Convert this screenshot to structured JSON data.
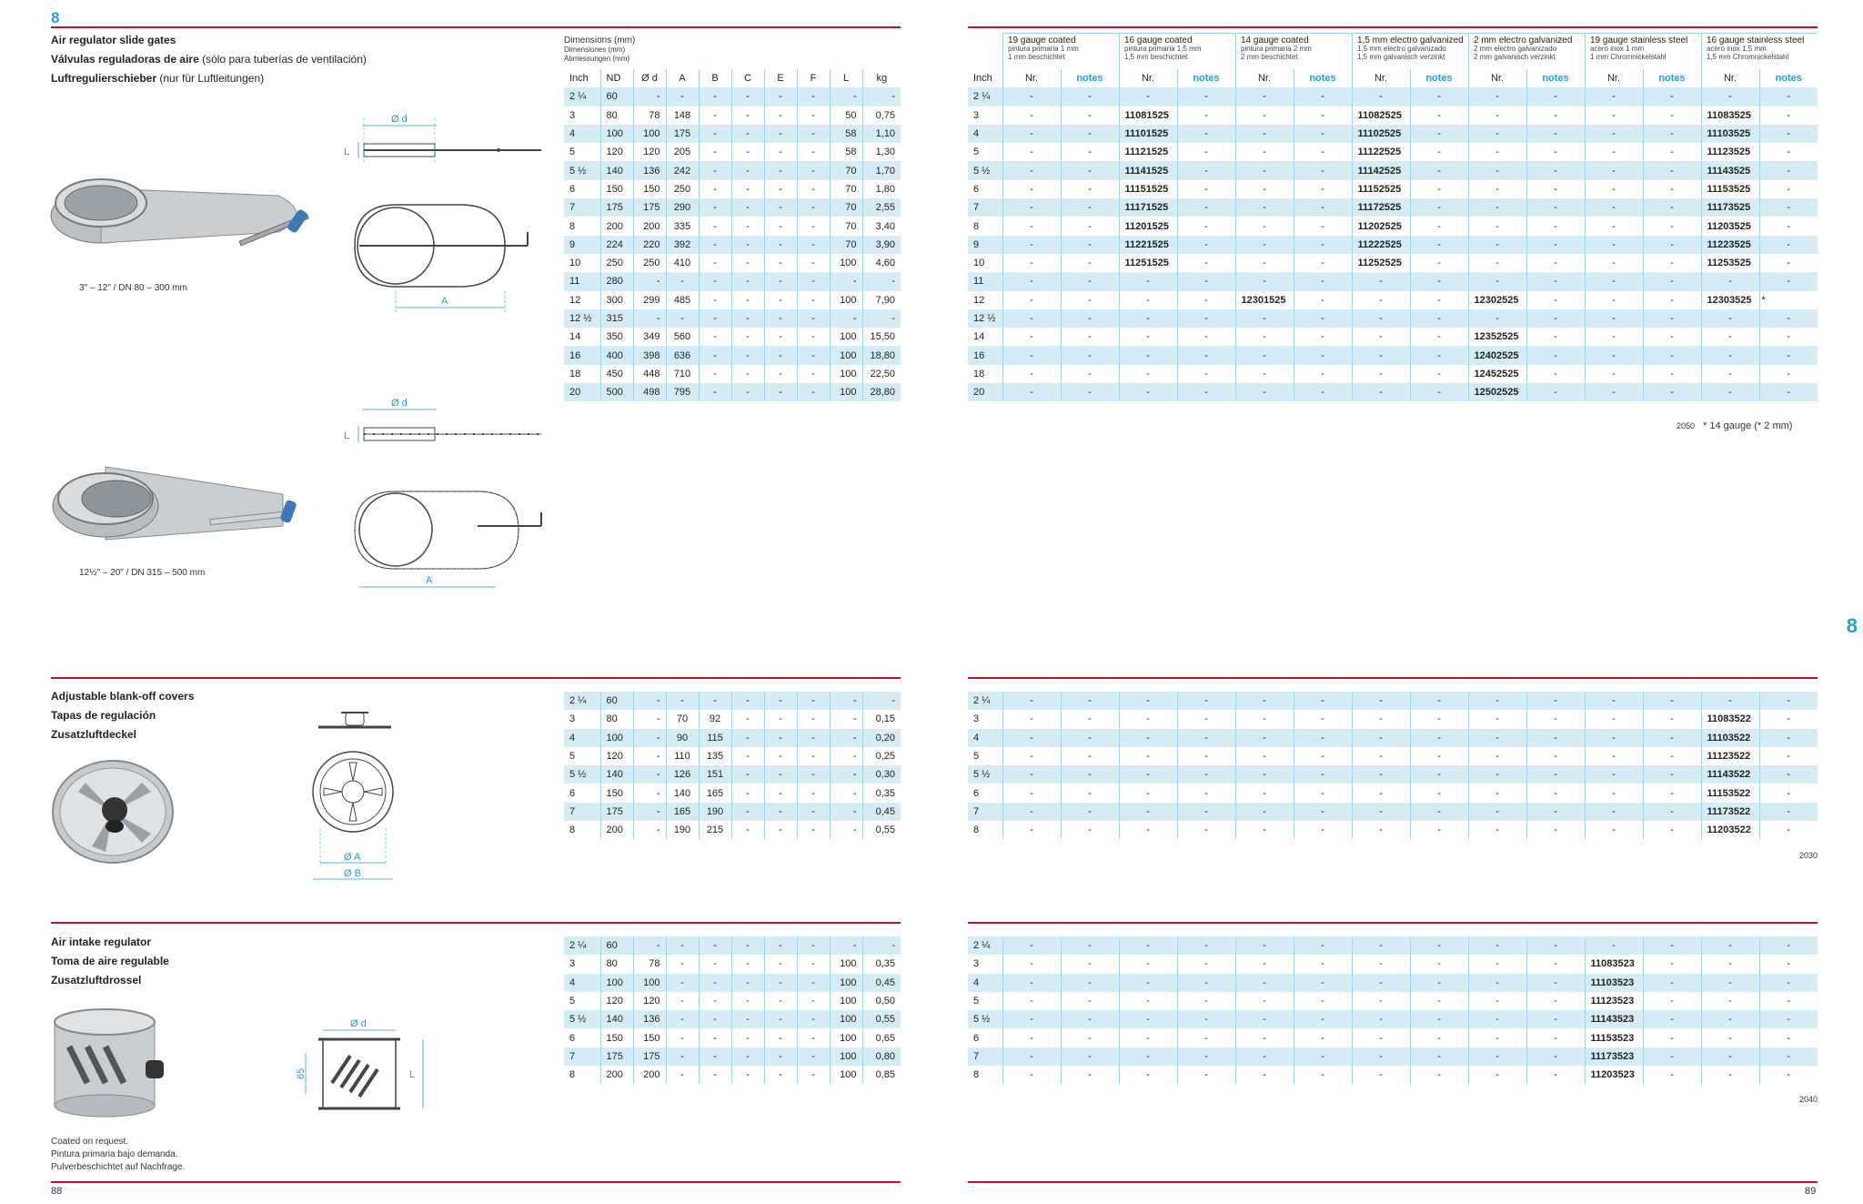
{
  "page": {
    "chapter": "8",
    "left_page": "88",
    "right_page": "89",
    "side_tab": "8",
    "colors": {
      "accent": "#1ea1d6",
      "rule": "#c8102e",
      "band": "#d5ecf7"
    }
  },
  "s1": {
    "title_en": "Air regulator slide gates",
    "title_es": "Válvulas reguladoras de aire",
    "title_es_note": "(sólo para tuberías de ventilación)",
    "title_de": "Luftregulierschieber",
    "title_de_note": "(nur für Luftleitungen)",
    "caption_small": "3\" – 12\" / DN 80 – 300 mm",
    "caption_large": "12½\" – 20\" / DN 315 – 500 mm",
    "dim_head": [
      "Dimensions (mm)",
      "Dimensiones (mm)",
      "Abmessungen (mm)"
    ],
    "dim_cols": [
      "Inch",
      "ND",
      "Ø d",
      "A",
      "B",
      "C",
      "E",
      "F",
      "L",
      "kg"
    ],
    "drawing_labels": {
      "d": "Ø d",
      "L": "L",
      "A": "A"
    },
    "dim_rows": [
      [
        "2 ¼",
        "60",
        "-",
        "-",
        "-",
        "-",
        "-",
        "-",
        "-",
        "-"
      ],
      [
        "3",
        "80",
        "78",
        "148",
        "-",
        "-",
        "-",
        "-",
        "50",
        "0,75"
      ],
      [
        "4",
        "100",
        "100",
        "175",
        "-",
        "-",
        "-",
        "-",
        "58",
        "1,10"
      ],
      [
        "5",
        "120",
        "120",
        "205",
        "-",
        "-",
        "-",
        "-",
        "58",
        "1,30"
      ],
      [
        "5 ½",
        "140",
        "136",
        "242",
        "-",
        "-",
        "-",
        "-",
        "70",
        "1,70"
      ],
      [
        "6",
        "150",
        "150",
        "250",
        "-",
        "-",
        "-",
        "-",
        "70",
        "1,80"
      ],
      [
        "7",
        "175",
        "175",
        "290",
        "-",
        "-",
        "-",
        "-",
        "70",
        "2,55"
      ],
      [
        "8",
        "200",
        "200",
        "335",
        "-",
        "-",
        "-",
        "-",
        "70",
        "3,40"
      ],
      [
        "9",
        "224",
        "220",
        "392",
        "-",
        "-",
        "-",
        "-",
        "70",
        "3,90"
      ],
      [
        "10",
        "250",
        "250",
        "410",
        "-",
        "-",
        "-",
        "-",
        "100",
        "4,60"
      ],
      [
        "11",
        "280",
        "-",
        "-",
        "-",
        "-",
        "-",
        "-",
        "-",
        "-"
      ],
      [
        "12",
        "300",
        "299",
        "485",
        "-",
        "-",
        "-",
        "-",
        "100",
        "7,90"
      ],
      [
        "12 ½",
        "315",
        "-",
        "-",
        "-",
        "-",
        "-",
        "-",
        "-",
        "-"
      ],
      [
        "14",
        "350",
        "349",
        "560",
        "-",
        "-",
        "-",
        "-",
        "100",
        "15,50"
      ],
      [
        "16",
        "400",
        "398",
        "636",
        "-",
        "-",
        "-",
        "-",
        "100",
        "18,80"
      ],
      [
        "18",
        "450",
        "448",
        "710",
        "-",
        "-",
        "-",
        "-",
        "100",
        "22,50"
      ],
      [
        "20",
        "500",
        "498",
        "795",
        "-",
        "-",
        "-",
        "-",
        "100",
        "28,80"
      ]
    ],
    "groups": [
      {
        "t": "19 gauge coated",
        "s1": "pintura primaria 1 mm",
        "s2": "1 mm beschichtet"
      },
      {
        "t": "16 gauge coated",
        "s1": "pintura primaria 1,5 mm",
        "s2": "1,5 mm beschichtet"
      },
      {
        "t": "14 gauge coated",
        "s1": "pintura primaria 2 mm",
        "s2": "2 mm beschichtet"
      },
      {
        "t": "1,5 mm electro galvanized",
        "s1": "1,5 mm electro galvanizado",
        "s2": "1,5 mm galvanisch verzinkt"
      },
      {
        "t": "2 mm electro galvanized",
        "s1": "2 mm electro galvanizado",
        "s2": "2 mm galvanisch verzinkt"
      },
      {
        "t": "19 gauge stainless steel",
        "s1": "acero inox 1 mm",
        "s2": "1 mm Chromnickelstahl"
      },
      {
        "t": "16 gauge stainless steel",
        "s1": "acero inox 1,5 mm",
        "s2": "1,5 mm Chromnickelstahl"
      }
    ],
    "col_inch": "Inch",
    "col_nr": "Nr.",
    "col_notes": "notes",
    "art_rows": [
      [
        "2 ¼",
        "-",
        "-",
        "-",
        "-",
        "-",
        "-",
        "-",
        "-",
        "-",
        "-",
        "-",
        "-",
        "-",
        "-"
      ],
      [
        "3",
        "-",
        "-",
        "11081525",
        "-",
        "-",
        "-",
        "11082525",
        "-",
        "-",
        "-",
        "-",
        "-",
        "11083525",
        "-"
      ],
      [
        "4",
        "-",
        "-",
        "11101525",
        "-",
        "-",
        "-",
        "11102525",
        "-",
        "-",
        "-",
        "-",
        "-",
        "11103525",
        "-"
      ],
      [
        "5",
        "-",
        "-",
        "11121525",
        "-",
        "-",
        "-",
        "11122525",
        "-",
        "-",
        "-",
        "-",
        "-",
        "11123525",
        "-"
      ],
      [
        "5 ½",
        "-",
        "-",
        "11141525",
        "-",
        "-",
        "-",
        "11142525",
        "-",
        "-",
        "-",
        "-",
        "-",
        "11143525",
        "-"
      ],
      [
        "6",
        "-",
        "-",
        "11151525",
        "-",
        "-",
        "-",
        "11152525",
        "-",
        "-",
        "-",
        "-",
        "-",
        "11153525",
        "-"
      ],
      [
        "7",
        "-",
        "-",
        "11171525",
        "-",
        "-",
        "-",
        "11172525",
        "-",
        "-",
        "-",
        "-",
        "-",
        "11173525",
        "-"
      ],
      [
        "8",
        "-",
        "-",
        "11201525",
        "-",
        "-",
        "-",
        "11202525",
        "-",
        "-",
        "-",
        "-",
        "-",
        "11203525",
        "-"
      ],
      [
        "9",
        "-",
        "-",
        "11221525",
        "-",
        "-",
        "-",
        "11222525",
        "-",
        "-",
        "-",
        "-",
        "-",
        "11223525",
        "-"
      ],
      [
        "10",
        "-",
        "-",
        "11251525",
        "-",
        "-",
        "-",
        "11252525",
        "-",
        "-",
        "-",
        "-",
        "-",
        "11253525",
        "-"
      ],
      [
        "11",
        "-",
        "-",
        "-",
        "-",
        "-",
        "-",
        "-",
        "-",
        "-",
        "-",
        "-",
        "-",
        "-",
        "-"
      ],
      [
        "12",
        "-",
        "-",
        "-",
        "-",
        "12301525",
        "-",
        "-",
        "-",
        "12302525",
        "-",
        "-",
        "-",
        "12303525",
        "*"
      ],
      [
        "12 ½",
        "-",
        "-",
        "-",
        "-",
        "-",
        "-",
        "-",
        "-",
        "-",
        "-",
        "-",
        "-",
        "-",
        "-"
      ],
      [
        "14",
        "-",
        "-",
        "-",
        "-",
        "-",
        "-",
        "-",
        "-",
        "12352525",
        "-",
        "-",
        "-",
        "-",
        "-"
      ],
      [
        "16",
        "-",
        "-",
        "-",
        "-",
        "-",
        "-",
        "-",
        "-",
        "12402525",
        "-",
        "-",
        "-",
        "-",
        "-"
      ],
      [
        "18",
        "-",
        "-",
        "-",
        "-",
        "-",
        "-",
        "-",
        "-",
        "12452525",
        "-",
        "-",
        "-",
        "-",
        "-"
      ],
      [
        "20",
        "-",
        "-",
        "-",
        "-",
        "-",
        "-",
        "-",
        "-",
        "12502525",
        "-",
        "-",
        "-",
        "-",
        "-"
      ]
    ],
    "code": "2050",
    "footnote": "* 14 gauge (* 2 mm)"
  },
  "s2": {
    "title_en": "Adjustable blank-off covers",
    "title_es": "Tapas de regulación",
    "title_de": "Zusatzluftdeckel",
    "drawing_labels": {
      "A": "Ø A",
      "B": "Ø B"
    },
    "dim_rows": [
      [
        "2 ¼",
        "60",
        "-",
        "-",
        "-",
        "-",
        "-",
        "-",
        "-",
        "-"
      ],
      [
        "3",
        "80",
        "-",
        "70",
        "92",
        "-",
        "-",
        "-",
        "-",
        "0,15"
      ],
      [
        "4",
        "100",
        "-",
        "90",
        "115",
        "-",
        "-",
        "-",
        "-",
        "0,20"
      ],
      [
        "5",
        "120",
        "-",
        "110",
        "135",
        "-",
        "-",
        "-",
        "-",
        "0,25"
      ],
      [
        "5 ½",
        "140",
        "-",
        "126",
        "151",
        "-",
        "-",
        "-",
        "-",
        "0,30"
      ],
      [
        "6",
        "150",
        "-",
        "140",
        "165",
        "-",
        "-",
        "-",
        "-",
        "0,35"
      ],
      [
        "7",
        "175",
        "-",
        "165",
        "190",
        "-",
        "-",
        "-",
        "-",
        "0,45"
      ],
      [
        "8",
        "200",
        "-",
        "190",
        "215",
        "-",
        "-",
        "-",
        "-",
        "0,55"
      ]
    ],
    "art_rows": [
      [
        "2 ¼",
        "-",
        "-",
        "-",
        "-",
        "-",
        "-",
        "-",
        "-",
        "-",
        "-",
        "-",
        "-",
        "-",
        "-"
      ],
      [
        "3",
        "-",
        "-",
        "-",
        "-",
        "-",
        "-",
        "-",
        "-",
        "-",
        "-",
        "-",
        "-",
        "11083522",
        "-"
      ],
      [
        "4",
        "-",
        "-",
        "-",
        "-",
        "-",
        "-",
        "-",
        "-",
        "-",
        "-",
        "-",
        "-",
        "11103522",
        "-"
      ],
      [
        "5",
        "-",
        "-",
        "-",
        "-",
        "-",
        "-",
        "-",
        "-",
        "-",
        "-",
        "-",
        "-",
        "11123522",
        "-"
      ],
      [
        "5 ½",
        "-",
        "-",
        "-",
        "-",
        "-",
        "-",
        "-",
        "-",
        "-",
        "-",
        "-",
        "-",
        "11143522",
        "-"
      ],
      [
        "6",
        "-",
        "-",
        "-",
        "-",
        "-",
        "-",
        "-",
        "-",
        "-",
        "-",
        "-",
        "-",
        "11153522",
        "-"
      ],
      [
        "7",
        "-",
        "-",
        "-",
        "-",
        "-",
        "-",
        "-",
        "-",
        "-",
        "-",
        "-",
        "-",
        "11173522",
        "-"
      ],
      [
        "8",
        "-",
        "-",
        "-",
        "-",
        "-",
        "-",
        "-",
        "-",
        "-",
        "-",
        "-",
        "-",
        "11203522",
        "-"
      ]
    ],
    "code": "2030"
  },
  "s3": {
    "title_en": "Air intake regulator",
    "title_es": "Toma de aire regulable",
    "title_de": "Zusatzluftdrossel",
    "drawing_labels": {
      "d": "Ø d",
      "h": "65",
      "L": "L"
    },
    "dim_rows": [
      [
        "2 ¼",
        "60",
        "-",
        "-",
        "-",
        "-",
        "-",
        "-",
        "-",
        "-"
      ],
      [
        "3",
        "80",
        "78",
        "-",
        "-",
        "-",
        "-",
        "-",
        "100",
        "0,35"
      ],
      [
        "4",
        "100",
        "100",
        "-",
        "-",
        "-",
        "-",
        "-",
        "100",
        "0,45"
      ],
      [
        "5",
        "120",
        "120",
        "-",
        "-",
        "-",
        "-",
        "-",
        "100",
        "0,50"
      ],
      [
        "5 ½",
        "140",
        "136",
        "-",
        "-",
        "-",
        "-",
        "-",
        "100",
        "0,55"
      ],
      [
        "6",
        "150",
        "150",
        "-",
        "-",
        "-",
        "-",
        "-",
        "100",
        "0,65"
      ],
      [
        "7",
        "175",
        "175",
        "-",
        "-",
        "-",
        "-",
        "-",
        "100",
        "0,80"
      ],
      [
        "8",
        "200",
        "200",
        "-",
        "-",
        "-",
        "-",
        "-",
        "100",
        "0,85"
      ]
    ],
    "art_rows": [
      [
        "2 ¼",
        "-",
        "-",
        "-",
        "-",
        "-",
        "-",
        "-",
        "-",
        "-",
        "-",
        "-",
        "-",
        "-",
        "-"
      ],
      [
        "3",
        "-",
        "-",
        "-",
        "-",
        "-",
        "-",
        "-",
        "-",
        "-",
        "-",
        "11083523",
        "-",
        "-",
        "-"
      ],
      [
        "4",
        "-",
        "-",
        "-",
        "-",
        "-",
        "-",
        "-",
        "-",
        "-",
        "-",
        "11103523",
        "-",
        "-",
        "-"
      ],
      [
        "5",
        "-",
        "-",
        "-",
        "-",
        "-",
        "-",
        "-",
        "-",
        "-",
        "-",
        "11123523",
        "-",
        "-",
        "-"
      ],
      [
        "5 ½",
        "-",
        "-",
        "-",
        "-",
        "-",
        "-",
        "-",
        "-",
        "-",
        "-",
        "11143523",
        "-",
        "-",
        "-"
      ],
      [
        "6",
        "-",
        "-",
        "-",
        "-",
        "-",
        "-",
        "-",
        "-",
        "-",
        "-",
        "11153523",
        "-",
        "-",
        "-"
      ],
      [
        "7",
        "-",
        "-",
        "-",
        "-",
        "-",
        "-",
        "-",
        "-",
        "-",
        "-",
        "11173523",
        "-",
        "-",
        "-"
      ],
      [
        "8",
        "-",
        "-",
        "-",
        "-",
        "-",
        "-",
        "-",
        "-",
        "-",
        "-",
        "11203523",
        "-",
        "-",
        "-"
      ]
    ],
    "code": "2040",
    "note": [
      "Coated on request.",
      "Pintura primaria bajo demanda.",
      "Pulverbeschichtet auf Nachfrage."
    ]
  }
}
